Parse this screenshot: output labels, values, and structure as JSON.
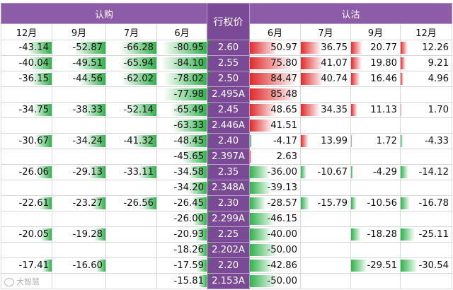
{
  "headers": {
    "call_group": "认购",
    "put_group": "认沽",
    "strike": "行权价",
    "call_months": [
      "12月",
      "9月",
      "7月",
      "6月"
    ],
    "put_months": [
      "6月",
      "7月",
      "9月",
      "12月"
    ]
  },
  "colors": {
    "header_purple": "#8c5ca8",
    "strike_purple": "#7a4a97",
    "negative_bar_green": "#2fb24a",
    "positive_bar_red": "#e02b2b"
  },
  "rows": [
    {
      "strike": "2.60",
      "c12": "-43.14",
      "c9": "-52.87",
      "c7": "-66.28",
      "c6": "-80.95",
      "p6": "50.97",
      "p7": "36.75",
      "p9": "20.77",
      "p12": "12.26"
    },
    {
      "strike": "2.55",
      "c12": "-40.04",
      "c9": "-49.51",
      "c7": "-65.94",
      "c6": "-84.10",
      "p6": "75.80",
      "p7": "41.07",
      "p9": "19.80",
      "p12": "9.21"
    },
    {
      "strike": "2.50",
      "c12": "-36.15",
      "c9": "-44.56",
      "c7": "-62.02",
      "c6": "-78.02",
      "p6": "84.47",
      "p7": "40.74",
      "p9": "16.46",
      "p12": "4.96"
    },
    {
      "strike": "2.495A",
      "c12": "",
      "c9": "",
      "c7": "",
      "c6": "-77.98",
      "p6": "85.48",
      "p7": "",
      "p9": "",
      "p12": ""
    },
    {
      "strike": "2.45",
      "c12": "-34.75",
      "c9": "-38.33",
      "c7": "-52.14",
      "c6": "-65.49",
      "p6": "48.65",
      "p7": "34.35",
      "p9": "11.13",
      "p12": "1.70"
    },
    {
      "strike": "2.446A",
      "c12": "",
      "c9": "",
      "c7": "",
      "c6": "-63.33",
      "p6": "41.51",
      "p7": "",
      "p9": "",
      "p12": ""
    },
    {
      "strike": "2.40",
      "c12": "-30.67",
      "c9": "-34.24",
      "c7": "-41.32",
      "c6": "-48.45",
      "p6": "-4.17",
      "p7": "13.99",
      "p9": "1.72",
      "p12": "-4.33"
    },
    {
      "strike": "2.397A",
      "c12": "",
      "c9": "",
      "c7": "",
      "c6": "-45.65",
      "p6": "2.63",
      "p7": "",
      "p9": "",
      "p12": ""
    },
    {
      "strike": "2.35",
      "c12": "-26.06",
      "c9": "-29.13",
      "c7": "-33.11",
      "c6": "-34.58",
      "p6": "-36.00",
      "p7": "-10.67",
      "p9": "-4.29",
      "p12": "-14.12"
    },
    {
      "strike": "2.348A",
      "c12": "",
      "c9": "",
      "c7": "",
      "c6": "-34.20",
      "p6": "-39.13",
      "p7": "",
      "p9": "",
      "p12": ""
    },
    {
      "strike": "2.30",
      "c12": "-22.61",
      "c9": "-23.27",
      "c7": "-26.56",
      "c6": "-26.45",
      "p6": "-28.57",
      "p7": "-15.79",
      "p9": "-10.56",
      "p12": "-16.78"
    },
    {
      "strike": "2.299A",
      "c12": "",
      "c9": "",
      "c7": "",
      "c6": "-26.00",
      "p6": "-46.15",
      "p7": "",
      "p9": "",
      "p12": ""
    },
    {
      "strike": "2.25",
      "c12": "-20.05",
      "c9": "-19.28",
      "c7": "",
      "c6": "-20.93",
      "p6": "-40.00",
      "p7": "",
      "p9": "-18.28",
      "p12": "-25.11"
    },
    {
      "strike": "2.202A",
      "c12": "",
      "c9": "",
      "c7": "",
      "c6": "-18.26",
      "p6": "-50.00",
      "p7": "",
      "p9": "",
      "p12": ""
    },
    {
      "strike": "2.20",
      "c12": "-17.41",
      "c9": "-16.60",
      "c7": "",
      "c6": "-17.59",
      "p6": "-42.86",
      "p7": "",
      "p9": "-29.51",
      "p12": "-30.54"
    },
    {
      "strike": "2.153A",
      "c12": "",
      "c9": "",
      "c7": "",
      "c6": "-15.81",
      "p6": "-50.00",
      "p7": "",
      "p9": "",
      "p12": ""
    }
  ],
  "watermark": "大智慧"
}
